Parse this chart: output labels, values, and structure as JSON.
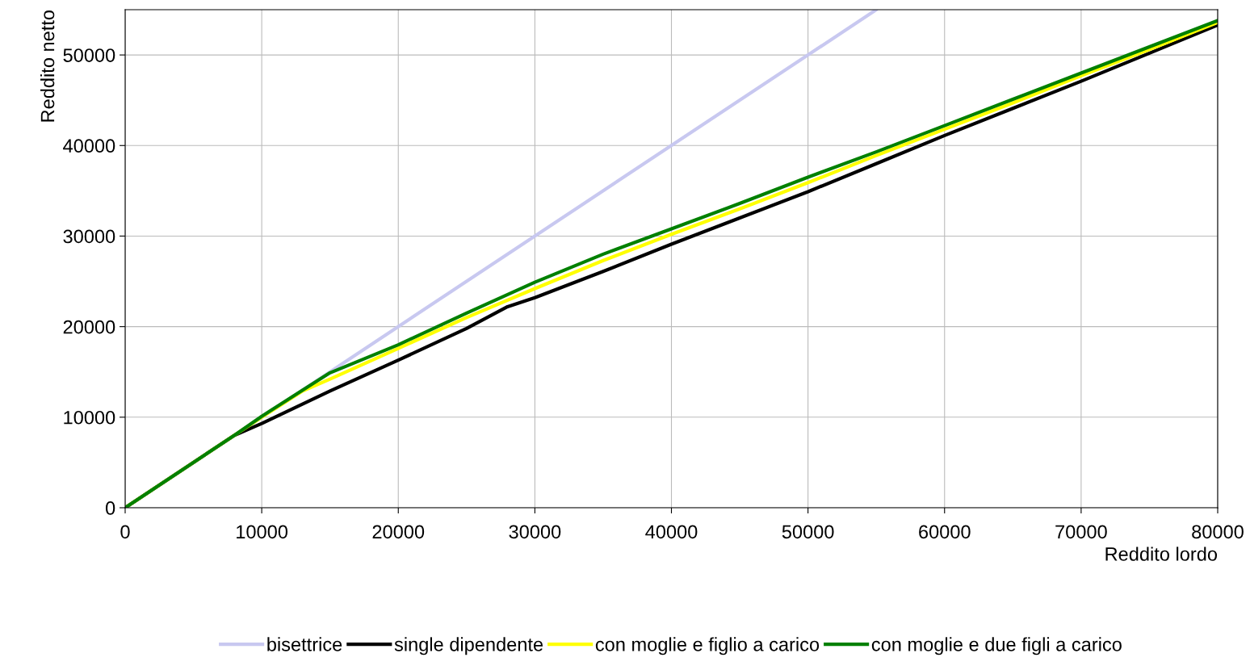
{
  "chart_data": {
    "type": "line",
    "xlabel": "Reddito lordo",
    "ylabel": "Reddito netto",
    "xlim": [
      0,
      80000
    ],
    "ylim": [
      0,
      55000
    ],
    "xticks": [
      0,
      10000,
      20000,
      30000,
      40000,
      50000,
      60000,
      70000,
      80000
    ],
    "yticks": [
      0,
      10000,
      20000,
      30000,
      40000,
      50000
    ],
    "grid": true,
    "legend": "bottom",
    "marker": "none",
    "line_style": "solid",
    "series": [
      {
        "name": "bisettrice",
        "color": "#c8c8f0",
        "x": [
          0,
          55000
        ],
        "values": [
          0,
          55000
        ]
      },
      {
        "name": "single dipendente",
        "color": "#000000",
        "x": [
          0,
          8000,
          10000,
          15000,
          20000,
          25000,
          28000,
          30000,
          35000,
          40000,
          45000,
          50000,
          55000,
          60000,
          65000,
          70000,
          75000,
          80000
        ],
        "values": [
          0,
          8000,
          9300,
          12900,
          16300,
          19800,
          22200,
          23200,
          26100,
          29100,
          32000,
          34900,
          38000,
          41100,
          44100,
          47100,
          50200,
          53300
        ]
      },
      {
        "name": "con moglie e figlio a carico",
        "color": "#ffff00",
        "x": [
          0,
          8000,
          10000,
          13000,
          15000,
          20000,
          25000,
          30000,
          35000,
          40000,
          45000,
          50000,
          55000,
          60000,
          65000,
          70000,
          75000,
          80000
        ],
        "values": [
          0,
          8000,
          10000,
          12900,
          14200,
          17600,
          21000,
          24200,
          27300,
          30200,
          33000,
          35900,
          38900,
          41800,
          44700,
          47700,
          50600,
          53600
        ]
      },
      {
        "name": "con moglie e due figli a carico",
        "color": "#008000",
        "x": [
          0,
          8000,
          10000,
          13000,
          15000,
          20000,
          25000,
          30000,
          35000,
          40000,
          45000,
          50000,
          55000,
          60000,
          65000,
          70000,
          75000,
          80000
        ],
        "values": [
          0,
          8000,
          10100,
          13000,
          14900,
          18000,
          21500,
          24900,
          28000,
          30800,
          33600,
          36500,
          39300,
          42200,
          45100,
          48000,
          50900,
          53800
        ]
      }
    ]
  }
}
